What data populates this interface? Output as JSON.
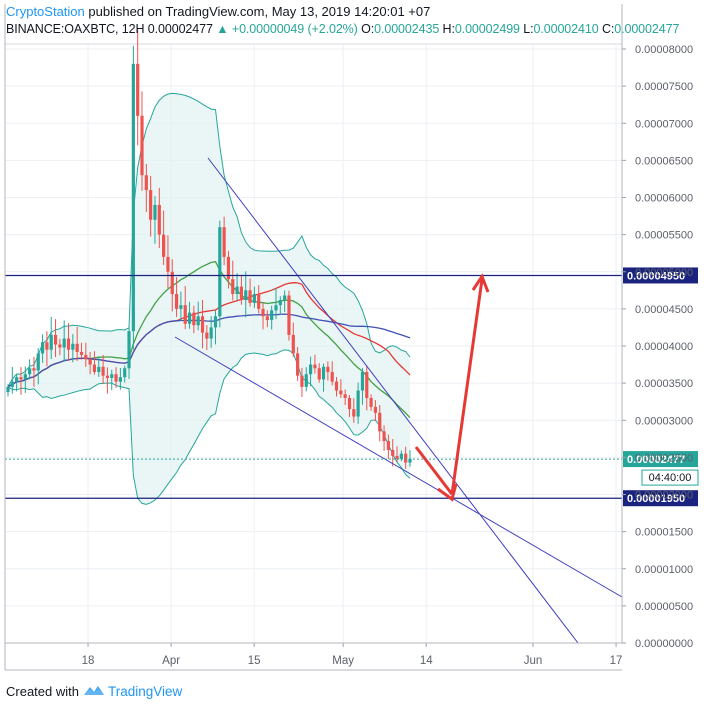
{
  "header": {
    "brand": "CryptoStation",
    "published": " published on TradingView.com, May 13, 2019 14:20:01 +07",
    "symbol": "BINANCE:OAXBTC, 12H",
    "last": "0.00002477",
    "change": "▲ +0.00000049 (+2.02%)",
    "o_label": "O:",
    "o": "0.00002435",
    "h_label": "H:",
    "h": "0.00002499",
    "l_label": "L:",
    "l": "0.00002410",
    "c_label": "C:",
    "c": "0.00002477"
  },
  "footer": {
    "created_with": "Created with",
    "tradingview": "TradingView"
  },
  "colors": {
    "up": "#26a69a",
    "down": "#ef5350",
    "trend": "#3f3fbf",
    "hline": "#1a237e",
    "arrow": "#e53935",
    "bb_fill": "#e0f2f1",
    "bb_line": "#26a69a",
    "ma_red": "#e53935",
    "ma_green": "#43a047",
    "ma_blue": "#3f51b5",
    "price_badge": "#26a69a",
    "level_badge": "#1a237e"
  },
  "chart_data": {
    "type": "candlestick",
    "symbol": "BINANCE:OAXBTC",
    "interval": "12H",
    "ylim": [
      0,
      8.1e-06
    ],
    "y_ticks": [
      "0.00000000",
      "0.00000500",
      "0.00001000",
      "0.00001500",
      "0.00002000",
      "0.00002500",
      "0.00003000",
      "0.00003500",
      "0.00004000",
      "0.00004500",
      "0.00005000",
      "0.00005500",
      "0.00006000",
      "0.00006500",
      "0.00007000",
      "0.00007500",
      "0.00008000"
    ],
    "y_tick_values": [
      0,
      5e-06,
      1e-05,
      1.5e-05,
      2e-05,
      2.5e-05,
      3e-05,
      3.5e-05,
      4e-05,
      4.5e-05,
      5e-05,
      5.5e-05,
      6e-05,
      6.5e-05,
      7e-05,
      7.5e-05,
      8e-05
    ],
    "x_ticks": [
      "18",
      "Apr",
      "15",
      "May",
      "14",
      "Jun",
      "17"
    ],
    "x_tick_days": [
      18,
      32,
      46,
      61,
      75,
      93,
      107
    ],
    "x_day_range": [
      4,
      108
    ],
    "horizontal_levels": [
      {
        "value": 4.95e-05,
        "label": "0.00004950"
      },
      {
        "value": 1.95e-05,
        "label": "0.00001950"
      }
    ],
    "last_price": {
      "value": 2.477e-05,
      "label": "0.00002477",
      "countdown": "04:40:00"
    },
    "candles_12h_close": [
      3.45e-05,
      3.52e-05,
      3.58e-05,
      3.55e-05,
      3.62e-05,
      3.7e-05,
      3.67e-05,
      3.9e-05,
      4.05e-05,
      3.95e-05,
      4.15e-05,
      4.02e-05,
      3.98e-05,
      4.1e-05,
      3.95e-05,
      4.03e-05,
      3.92e-05,
      3.88e-05,
      3.82e-05,
      3.75e-05,
      3.65e-05,
      3.72e-05,
      3.6e-05,
      3.57e-05,
      3.62e-05,
      3.52e-05,
      3.58e-05,
      3.7e-05,
      4.2e-05,
      7.8e-05,
      7.1e-05,
      6.3e-05,
      6.1e-05,
      5.7e-05,
      5.9e-05,
      5.5e-05,
      5.2e-05,
      5e-05,
      4.7e-05,
      4.5e-05,
      4.55e-05,
      4.3e-05,
      4.45e-05,
      4.28e-05,
      4.4e-05,
      4.18e-05,
      4.1e-05,
      4.25e-05,
      4.4e-05,
      5.6e-05,
      5.2e-05,
      4.9e-05,
      4.7e-05,
      4.8e-05,
      4.62e-05,
      4.75e-05,
      4.58e-05,
      4.7e-05,
      4.5e-05,
      4.4e-05,
      4.35e-05,
      4.48e-05,
      4.55e-05,
      4.62e-05,
      4.68e-05,
      4.15e-05,
      3.9e-05,
      3.6e-05,
      3.45e-05,
      3.62e-05,
      3.75e-05,
      3.7e-05,
      3.55e-05,
      3.72e-05,
      3.65e-05,
      3.52e-05,
      3.4e-05,
      3.35e-05,
      3.3e-05,
      3.15e-05,
      3.05e-05,
      3.4e-05,
      3.65e-05,
      3.3e-05,
      3.18e-05,
      3.1e-05,
      2.85e-05,
      2.72e-05,
      2.6e-05,
      2.52e-05,
      2.48e-05,
      2.55e-05,
      2.43e-05,
      2.48e-05
    ],
    "indicators": [
      "Bollinger Bands",
      "MA red",
      "MA green",
      "MA blue"
    ],
    "annotations": [
      "descending wedge trendlines",
      "arrow down to 0.00001950",
      "arrow up to 0.00004950"
    ]
  }
}
